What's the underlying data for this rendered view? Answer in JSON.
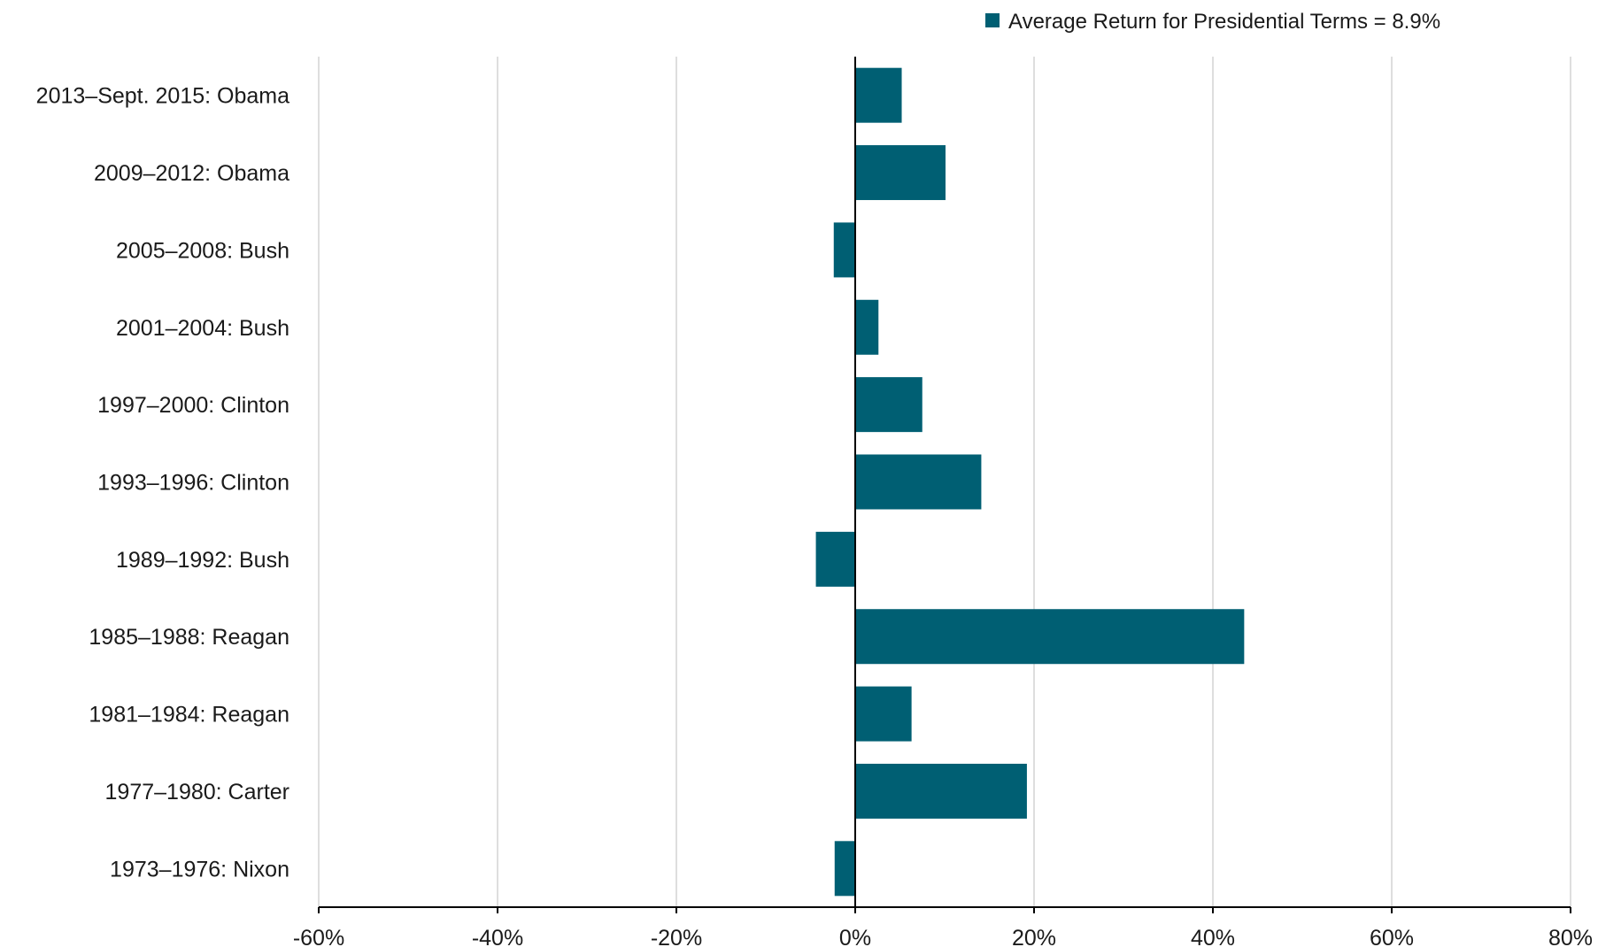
{
  "chart_data": {
    "type": "bar",
    "orientation": "horizontal",
    "categories": [
      "2013–Sept. 2015: Obama",
      "2009–2012: Obama",
      "2005–2008: Bush",
      "2001–2004: Bush",
      "1997–2000: Clinton",
      "1993–1996: Clinton",
      "1989–1992: Bush",
      "1985–1988: Reagan",
      "1981–1984: Reagan",
      "1977–1980: Carter",
      "1973–1976: Nixon"
    ],
    "series": [
      {
        "name": "Average Return for Presidential Terms = 8.9%",
        "color": "#005f73",
        "values": [
          5.2,
          10.1,
          -2.4,
          2.6,
          7.5,
          14.1,
          -4.4,
          43.5,
          6.3,
          19.2,
          -2.3
        ]
      }
    ],
    "xlim": [
      -60,
      80
    ],
    "xticks": [
      -60,
      -40,
      -20,
      0,
      20,
      40,
      60,
      80
    ],
    "xtick_labels": [
      "-60%",
      "-40%",
      "-20%",
      "0%",
      "20%",
      "40%",
      "60%",
      "80%"
    ],
    "title": "",
    "xlabel": "",
    "ylabel": "",
    "grid": "vertical",
    "legend_position": "top-right",
    "colors": {
      "bar": "#005f73",
      "grid": "#d4d4d4",
      "axis": "#000000",
      "text": "#1a1a1a"
    }
  }
}
